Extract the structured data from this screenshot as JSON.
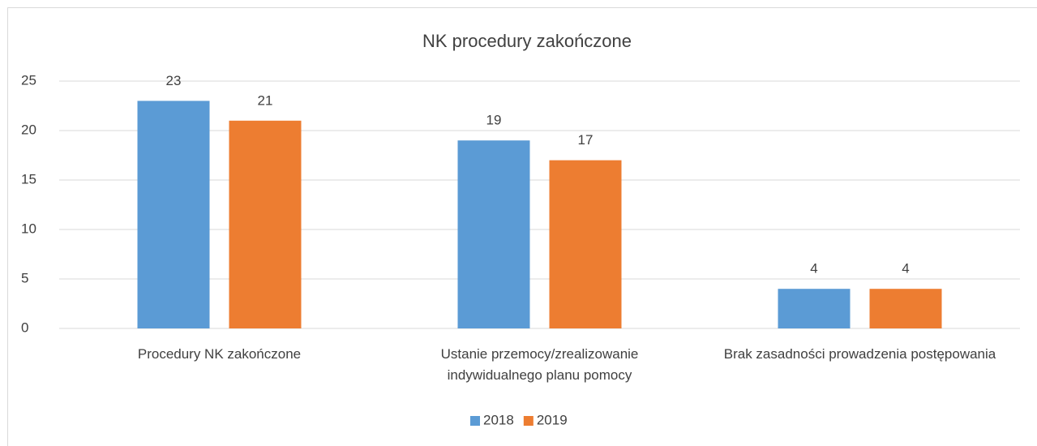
{
  "chart_data": {
    "type": "bar",
    "title": "NK procedury zakończone",
    "categories": [
      "Procedury NK zakończone",
      "Ustanie przemocy/zrealizowanie indywidualnego planu pomocy",
      "Brak zasadności prowadzenia postępowania"
    ],
    "series": [
      {
        "name": "2018",
        "color": "#5b9bd5",
        "values": [
          23,
          19,
          4
        ]
      },
      {
        "name": "2019",
        "color": "#ed7d31",
        "values": [
          21,
          17,
          4
        ]
      }
    ],
    "ylim": [
      0,
      25
    ],
    "yticks": [
      0,
      5,
      10,
      15,
      20,
      25
    ],
    "grid": true,
    "legend": "bottom"
  }
}
